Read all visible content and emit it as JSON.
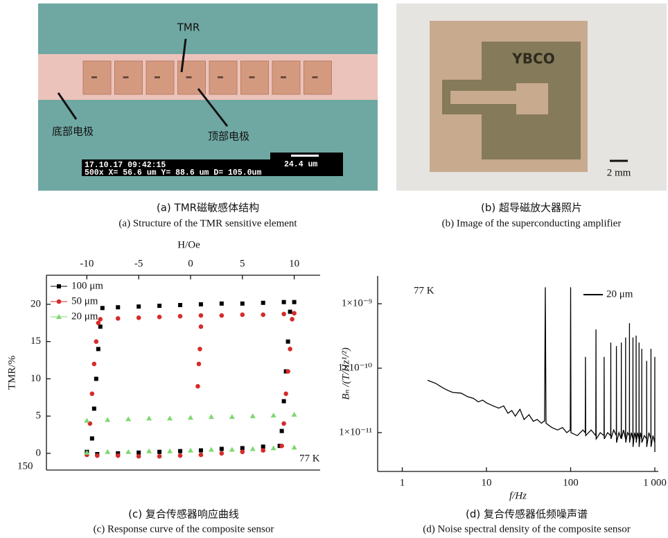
{
  "panels": {
    "a": {
      "label_tmr": "TMR",
      "label_bottom": "底部电极",
      "label_top": "顶部电极",
      "info_time": "17.10.17 09:42:15",
      "info_pos": "500x X= 56.6 um Y= 88.6 um D= 105.0um",
      "info_scale": "24.4 um"
    },
    "b": {
      "label_ybco": "YBCO",
      "scale": "2 mm"
    }
  },
  "captions": [
    {
      "zh": "(a) TMR磁敏感体结构",
      "en": "(a) Structure of the TMR sensitive element"
    },
    {
      "zh": "(b) 超导磁放大器照片",
      "en": "(b) Image of the superconducting amplifier"
    },
    {
      "zh": "(c) 复合传感器响应曲线",
      "en": "(c) Response curve of the composite sensor"
    },
    {
      "zh": "(d) 复合传感器低频噪声谱",
      "en": "(d) Noise spectral density of the composite sensor"
    }
  ],
  "chart_data": [
    {
      "type": "scatter",
      "xlabel": "H/Oe",
      "ylabel": "TMR/%",
      "x_axis": "top",
      "xlim": [
        -13.9,
        12.5
      ],
      "ylim": [
        -2.24,
        23.9
      ],
      "xticks": [
        -10,
        -5,
        0,
        5,
        10
      ],
      "yticks": [
        0,
        5,
        10,
        15,
        20
      ],
      "annotations": [
        "77 K",
        "150"
      ],
      "legend": "upper left",
      "series": [
        {
          "name": "100 μm",
          "color": "#000000",
          "marker": "square",
          "x": [
            -10,
            -9.5,
            -9.3,
            -9.1,
            -8.9,
            -8.7,
            -8.5,
            -7,
            -5,
            -3,
            -1,
            1,
            3,
            5,
            7,
            9,
            10,
            9.6,
            9.4,
            9.2,
            9.0,
            8.8,
            8.6,
            7,
            5,
            3,
            1,
            -1,
            -3,
            -5,
            -7,
            -9
          ],
          "values": [
            0.2,
            2,
            6,
            10,
            14,
            17,
            19.5,
            19.6,
            19.7,
            19.8,
            19.9,
            20,
            20.1,
            20.1,
            20.2,
            20.3,
            20.3,
            19,
            15,
            11,
            7,
            3,
            1,
            0.9,
            0.7,
            0.6,
            0.4,
            0.3,
            0.2,
            0.1,
            0,
            -0.1
          ]
        },
        {
          "name": "50 μm",
          "color": "#d62b2b",
          "marker": "circle",
          "x": [
            -10,
            -9.7,
            -9.5,
            -9.3,
            -9.1,
            -8.9,
            -8.7,
            -7,
            -5,
            -3,
            -1,
            1,
            3,
            5,
            7,
            9,
            10,
            0.7,
            0.8,
            0.9,
            1.0,
            9.8,
            9.6,
            9.4,
            9.2,
            9.0,
            8.8,
            7,
            5,
            3,
            1,
            -1,
            -3,
            -5,
            -7,
            -9
          ],
          "values": [
            -0.2,
            4,
            8,
            12,
            15,
            17.5,
            18,
            18.1,
            18.2,
            18.3,
            18.4,
            18.5,
            18.5,
            18.6,
            18.6,
            18.7,
            18.8,
            9,
            12,
            14,
            17,
            18,
            14,
            11,
            8,
            4,
            1,
            0.4,
            0.2,
            0,
            -0.2,
            -0.3,
            -0.4,
            -0.4,
            -0.3,
            -0.3
          ]
        },
        {
          "name": "20 μm",
          "color": "#7ed86e",
          "marker": "triangle",
          "x": [
            -10,
            -8,
            -6,
            -4,
            -2,
            0,
            2,
            4,
            6,
            8,
            10,
            10,
            8,
            6,
            4,
            2,
            0,
            -2,
            -4,
            -6,
            -8,
            -10
          ],
          "values": [
            4.4,
            4.5,
            4.6,
            4.7,
            4.7,
            4.8,
            4.9,
            4.9,
            5.0,
            5.1,
            5.2,
            0.8,
            0.7,
            0.6,
            0.5,
            0.5,
            0.4,
            0.3,
            0.3,
            0.2,
            0.2,
            0.1
          ]
        }
      ]
    },
    {
      "type": "line",
      "xscale": "log",
      "yscale": "log",
      "xlabel": "f/Hz",
      "ylabel": "Bₙ /(T/Hz¹/²)",
      "xlim": [
        0.51,
        1100
      ],
      "ylim": [
        2.5e-12,
        2.7e-09
      ],
      "xticks": [
        1,
        10,
        100,
        {
          "value": 1000,
          "label": "1 000"
        }
      ],
      "yticks": [
        {
          "value": 1e-11,
          "label": "1×10⁻¹¹"
        },
        {
          "value": 1e-10,
          "label": "1×10⁻¹⁰"
        },
        {
          "value": 1e-09,
          "label": "1×10⁻⁹"
        }
      ],
      "annotations": [
        "77 K"
      ],
      "legend": "upper right",
      "series": [
        {
          "name": "20 μm",
          "color": "#000000",
          "x": [
            2,
            2.5,
            3,
            3.5,
            4,
            5,
            6,
            7,
            8,
            9,
            10,
            12,
            14,
            16,
            18,
            20,
            22,
            25,
            28,
            32,
            36,
            40,
            45,
            48,
            49,
            50,
            51,
            55,
            60,
            70,
            80,
            90,
            99,
            100,
            101,
            120,
            140,
            149,
            150,
            151,
            175,
            199,
            200,
            201,
            225,
            249,
            250,
            251,
            275,
            299,
            300,
            301,
            325,
            349,
            350,
            351,
            375,
            399,
            400,
            401,
            425,
            449,
            450,
            451,
            475,
            499,
            500,
            501,
            525,
            549,
            550,
            551,
            575,
            599,
            600,
            601,
            625,
            649,
            650,
            651,
            675,
            699,
            700,
            701,
            750,
            799,
            800,
            801,
            850,
            899,
            900,
            901,
            950,
            999,
            1000,
            1001
          ],
          "values": [
            6.5e-11,
            5.8e-11,
            5e-11,
            4.5e-11,
            4.2e-11,
            4.1e-11,
            3.6e-11,
            3.4e-11,
            3e-11,
            3.2e-11,
            2.9e-11,
            2.6e-11,
            2.4e-11,
            2.6e-11,
            2e-11,
            2.2e-11,
            1.8e-11,
            2.3e-11,
            1.6e-11,
            1.9e-11,
            1.5e-11,
            1.6e-11,
            1.4e-11,
            1.5e-11,
            1.5e-11,
            1.8e-09,
            1.4e-11,
            1.3e-11,
            1.2e-11,
            1.1e-11,
            1.2e-11,
            1e-11,
            1.1e-11,
            1.8e-09,
            1e-11,
            9e-12,
            1.1e-11,
            1e-11,
            1.5e-10,
            9e-12,
            1.1e-11,
            9e-12,
            4e-10,
            8e-12,
            1e-11,
            9e-12,
            1.5e-10,
            8e-12,
            1e-11,
            9e-12,
            2.5e-10,
            8e-12,
            1.1e-11,
            9e-12,
            2.2e-10,
            7e-12,
            1e-11,
            8e-12,
            2.5e-10,
            8e-12,
            1.1e-11,
            8e-12,
            3e-10,
            7e-12,
            1e-11,
            9e-12,
            5e-10,
            7e-12,
            1e-11,
            8e-12,
            3e-10,
            6e-12,
            1e-11,
            8e-12,
            3.2e-10,
            7e-12,
            1e-11,
            8e-12,
            2.5e-10,
            6e-12,
            1e-11,
            8e-12,
            2e-10,
            7e-12,
            9e-12,
            8e-12,
            1.3e-10,
            6e-12,
            1e-11,
            8e-12,
            2e-10,
            6e-12,
            9e-12,
            7e-12,
            1.5e-10,
            5e-12
          ]
        }
      ]
    }
  ]
}
